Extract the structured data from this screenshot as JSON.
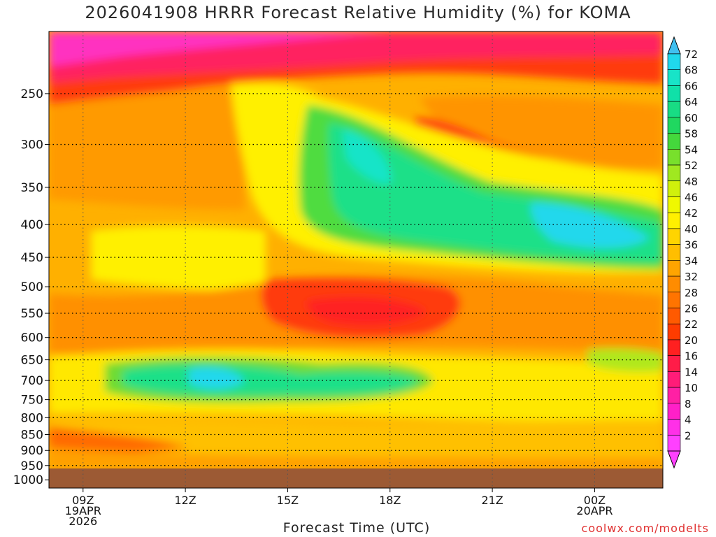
{
  "chart_data": {
    "type": "heatmap",
    "title": "2026041908 HRRR Forecast Relative Humidity (%) for KOMA",
    "xlabel": "Forecast Time (UTC)",
    "ylabel": "",
    "y_ticks": [
      "250",
      "300",
      "350",
      "400",
      "450",
      "500",
      "550",
      "600",
      "650",
      "700",
      "750",
      "800",
      "850",
      "900",
      "950",
      "1000"
    ],
    "x_ticks": [
      {
        "label": "09Z",
        "sub1": "19APR",
        "sub2": "2026",
        "hour": 9
      },
      {
        "label": "12Z",
        "sub1": "",
        "sub2": "",
        "hour": 12
      },
      {
        "label": "15Z",
        "sub1": "",
        "sub2": "",
        "hour": 15
      },
      {
        "label": "18Z",
        "sub1": "",
        "sub2": "",
        "hour": 18
      },
      {
        "label": "21Z",
        "sub1": "",
        "sub2": "",
        "hour": 21
      },
      {
        "label": "00Z",
        "sub1": "20APR",
        "sub2": "",
        "hour": 24
      }
    ],
    "x_range_hours": [
      8,
      26
    ],
    "y_range_hpa": [
      200,
      1030
    ],
    "colorbar_levels": [
      "72",
      "68",
      "66",
      "64",
      "60",
      "58",
      "54",
      "52",
      "48",
      "46",
      "42",
      "40",
      "36",
      "34",
      "32",
      "28",
      "26",
      "22",
      "20",
      "16",
      "14",
      "10",
      "8",
      "4",
      "2"
    ],
    "colorbar_colors": [
      "#20d8ec",
      "#18e4c8",
      "#10e0a8",
      "#18dc84",
      "#20d860",
      "#44d83c",
      "#78e02c",
      "#a0e820",
      "#d0f00c",
      "#f0f800",
      "#fff000",
      "#ffd400",
      "#ffbe00",
      "#ffa400",
      "#ff8c00",
      "#ff7400",
      "#ff5a00",
      "#ff3c00",
      "#ff2020",
      "#ff1c48",
      "#ff1c78",
      "#ff20a4",
      "#ff20c8",
      "#ff30e8",
      "#ff40ff"
    ],
    "grid": true,
    "legend": "right",
    "ground_color": "#9c5a34",
    "credit": "coolwx.com/modelts"
  }
}
